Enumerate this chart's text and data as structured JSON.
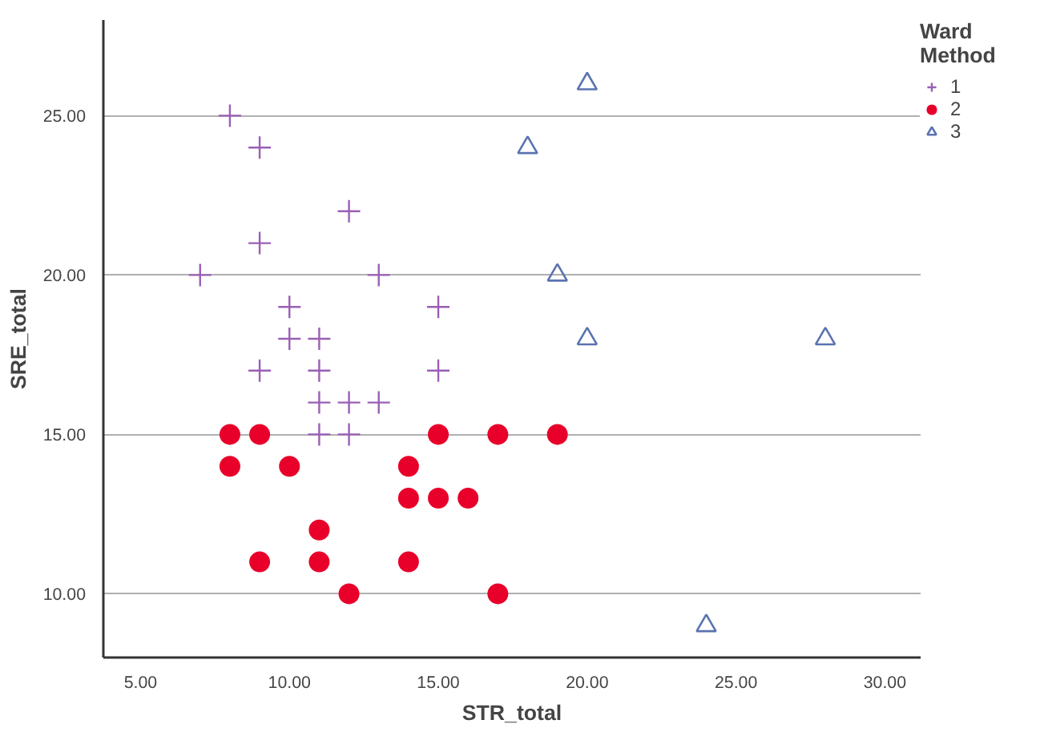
{
  "chart_data": {
    "type": "scatter",
    "xlabel": "STR_total",
    "ylabel": "SRE_total",
    "legend_title": "Ward\nMethod",
    "legend": "top right",
    "grid": "y",
    "xlim": [
      3.75,
      31.2
    ],
    "ylim": [
      8.0,
      28.0
    ],
    "xticks": [
      {
        "value": 5,
        "label": "5.00"
      },
      {
        "value": 10,
        "label": "10.00"
      },
      {
        "value": 15,
        "label": "15.00"
      },
      {
        "value": 20,
        "label": "20.00"
      },
      {
        "value": 25,
        "label": "25.00"
      },
      {
        "value": 30,
        "label": "30.00"
      }
    ],
    "yticks": [
      {
        "value": 10,
        "label": "10.00"
      },
      {
        "value": 15,
        "label": "15.00"
      },
      {
        "value": 20,
        "label": "20.00"
      },
      {
        "value": 25,
        "label": "25.00"
      }
    ],
    "series": [
      {
        "name": "1",
        "color": "#9a5fb5",
        "marker": "cross",
        "x": [
          8,
          9,
          12,
          9,
          7,
          13,
          10,
          15,
          10,
          11,
          9,
          11,
          15,
          11,
          12,
          13,
          11,
          12
        ],
        "values": [
          25,
          24,
          22,
          21,
          20,
          20,
          19,
          19,
          18,
          18,
          17,
          17,
          17,
          16,
          16,
          16,
          15,
          15
        ]
      },
      {
        "name": "2",
        "color": "#e8002a",
        "marker": "circle",
        "x": [
          8,
          9,
          15,
          17,
          19,
          8,
          10,
          14,
          14,
          15,
          16,
          11,
          9,
          11,
          14,
          12,
          17
        ],
        "values": [
          15,
          15,
          15,
          15,
          15,
          14,
          14,
          14,
          13,
          13,
          13,
          12,
          11,
          11,
          11,
          10,
          10
        ]
      },
      {
        "name": "3",
        "color": "#5b73b0",
        "marker": "triangle",
        "x": [
          20,
          18,
          19,
          20,
          28,
          24
        ],
        "values": [
          26,
          24,
          20,
          18,
          18,
          9
        ]
      }
    ]
  }
}
